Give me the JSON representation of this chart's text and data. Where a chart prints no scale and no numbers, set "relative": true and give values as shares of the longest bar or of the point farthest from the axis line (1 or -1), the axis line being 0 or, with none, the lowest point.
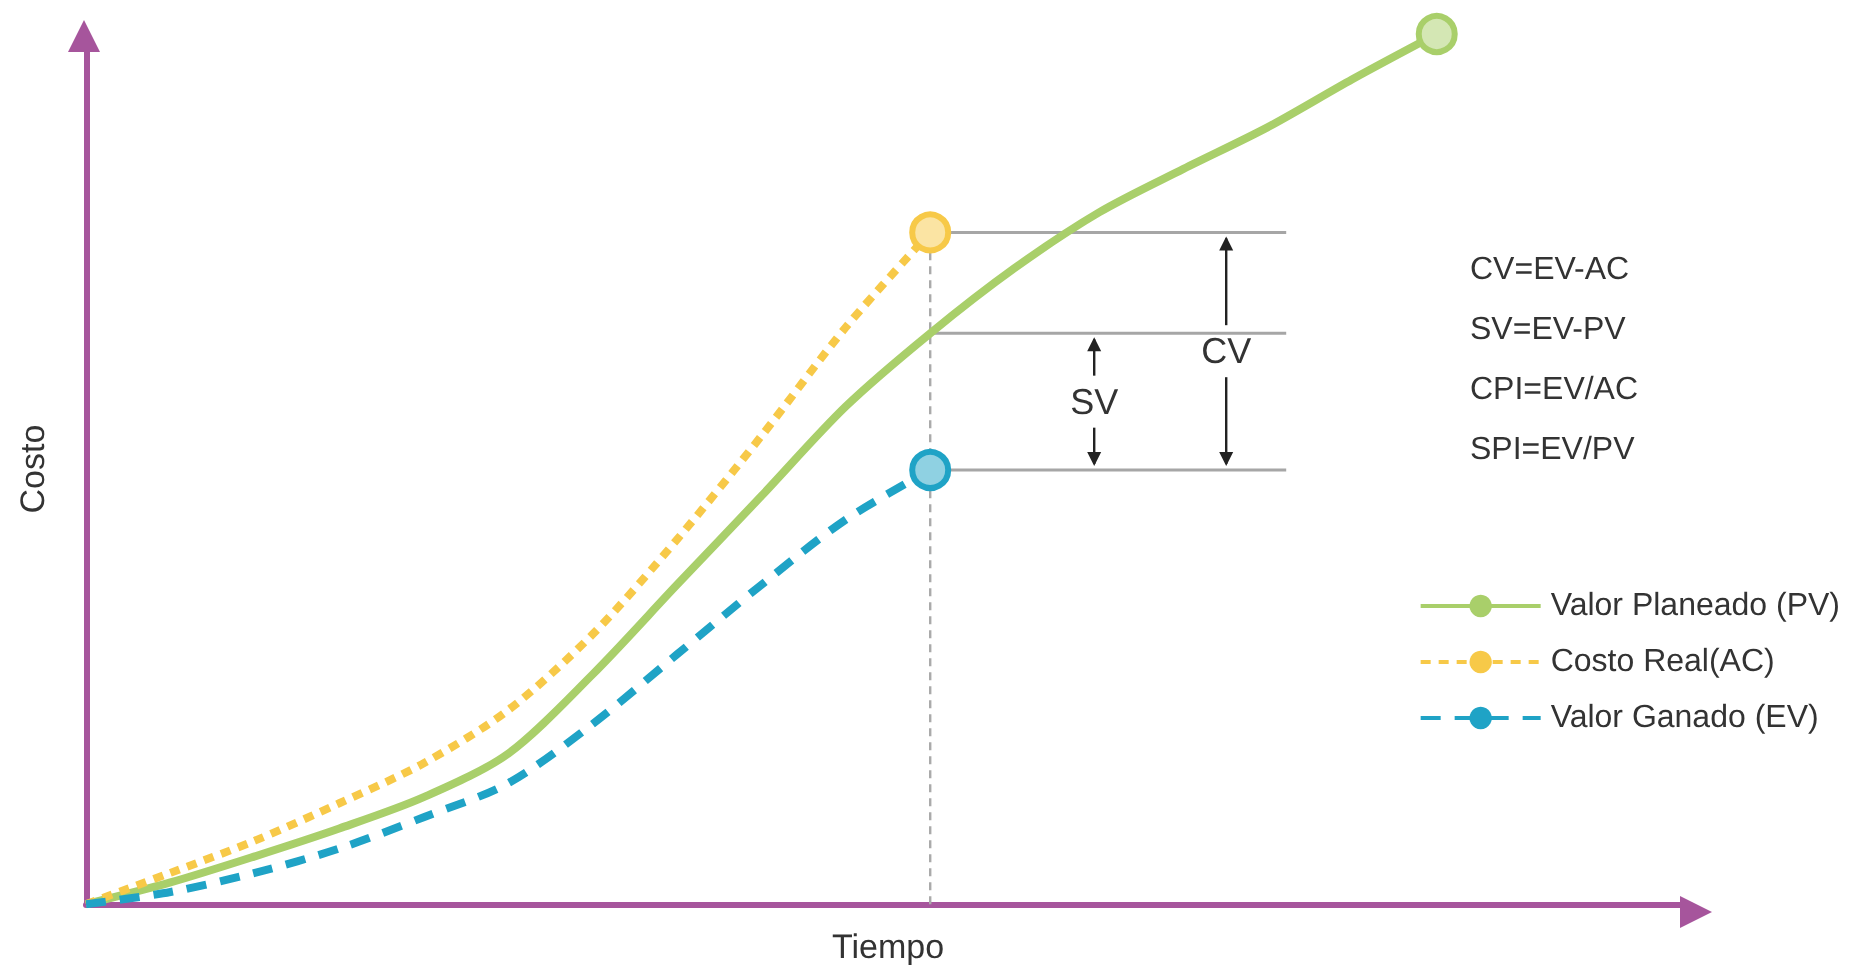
{
  "chart_data": {
    "type": "line",
    "relative": true,
    "xlabel": "Tiempo",
    "ylabel": "Costo",
    "categories": [
      null,
      null,
      null,
      null,
      null,
      null,
      null,
      null,
      null,
      null,
      null,
      null,
      null,
      null,
      null,
      null,
      null,
      null,
      null,
      null
    ],
    "series": [
      {
        "name": "Valor Planeado (PV)",
        "color": "#a9cf6a",
        "line_style": "solid",
        "values": [
          0,
          0.025,
          0.055,
          0.087,
          0.123,
          0.173,
          0.264,
          0.367,
          0.469,
          0.572,
          0.656,
          0.731,
          0.795,
          0.845,
          0.893,
          0.948,
          1,
          null,
          null,
          null
        ]
      },
      {
        "name": "Costo Real(AC)",
        "color": "#f7c948",
        "line_style": "dotted",
        "values": [
          0,
          0.036,
          0.073,
          0.116,
          0.162,
          0.223,
          0.31,
          0.419,
          0.538,
          0.663,
          0.772,
          null,
          null,
          null,
          null,
          null,
          null,
          null,
          null,
          null
        ]
      },
      {
        "name": "Valor Ganado (EV)",
        "color": "#1fa3c6",
        "line_style": "dashed",
        "values": [
          0,
          0.014,
          0.036,
          0.064,
          0.1,
          0.139,
          0.207,
          0.287,
          0.367,
          0.442,
          0.499,
          null,
          null,
          null,
          null,
          null,
          null,
          null,
          null,
          null
        ]
      }
    ],
    "legend": "right",
    "grid": false,
    "ref_lines": [
      {
        "axis": "y",
        "value": 0.772,
        "color": "#a6a6a6"
      },
      {
        "axis": "y",
        "value": 0.656,
        "color": "#a6a6a6"
      },
      {
        "axis": "y",
        "value": 0.499,
        "color": "#a6a6a6"
      }
    ],
    "annotations": [
      "SV",
      "CV",
      "CV=EV-AC",
      "SV=EV-PV",
      "CPI=EV/AC",
      "SPI=EV/PV"
    ]
  }
}
